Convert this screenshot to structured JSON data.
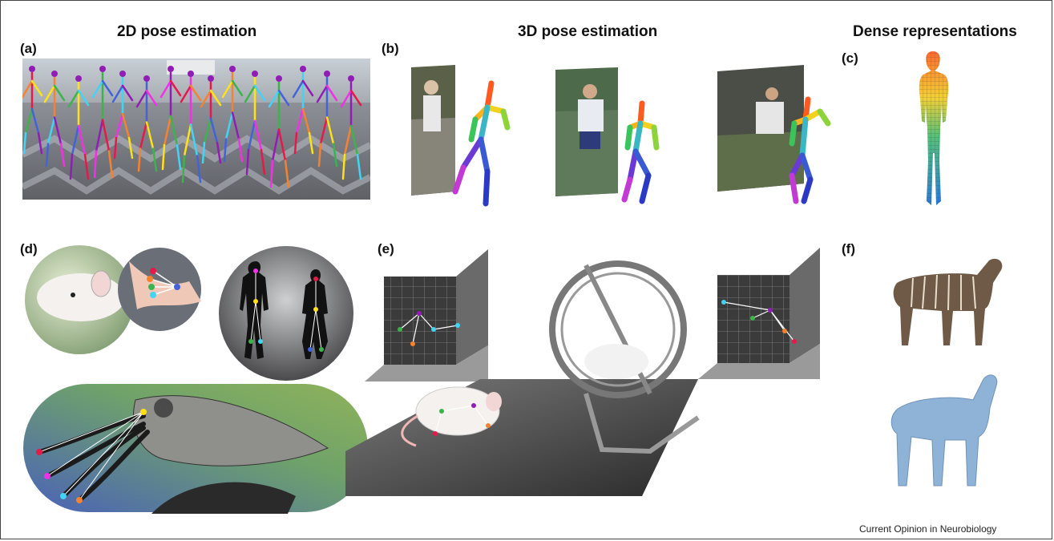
{
  "headings": {
    "pose_2d": "2D pose estimation",
    "pose_3d": "3D pose estimation",
    "dense": "Dense representations"
  },
  "panel_labels": {
    "a": "(a)",
    "b": "(b)",
    "c": "(c)",
    "d": "(d)",
    "e": "(e)",
    "f": "(f)"
  },
  "credit": "Current Opinion in Neurobiology",
  "colors": {
    "keypoints": [
      "#e6194b",
      "#f58231",
      "#ffe119",
      "#3cb44b",
      "#42d4f4",
      "#4363d8",
      "#911eb4",
      "#f032e6"
    ],
    "zebra_mesh": "#8fb3d6",
    "human_mesh_top": "#ff7b2e",
    "human_mesh_bottom": "#2a7bd8"
  }
}
